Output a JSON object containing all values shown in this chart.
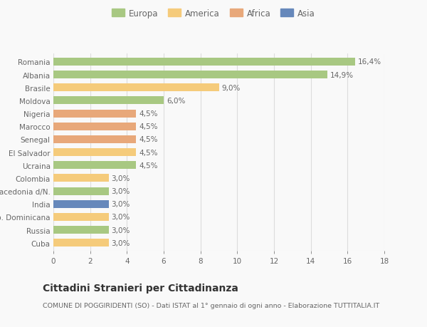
{
  "countries": [
    "Cuba",
    "Russia",
    "Rep. Dominicana",
    "India",
    "Macedonia d/N.",
    "Colombia",
    "Ucraina",
    "El Salvador",
    "Senegal",
    "Marocco",
    "Nigeria",
    "Moldova",
    "Brasile",
    "Albania",
    "Romania"
  ],
  "values": [
    3.0,
    3.0,
    3.0,
    3.0,
    3.0,
    3.0,
    4.5,
    4.5,
    4.5,
    4.5,
    4.5,
    6.0,
    9.0,
    14.9,
    16.4
  ],
  "labels": [
    "3,0%",
    "3,0%",
    "3,0%",
    "3,0%",
    "3,0%",
    "3,0%",
    "4,5%",
    "4,5%",
    "4,5%",
    "4,5%",
    "4,5%",
    "6,0%",
    "9,0%",
    "14,9%",
    "16,4%"
  ],
  "colors": [
    "#f5cb7b",
    "#a8c882",
    "#f5cb7b",
    "#6688bb",
    "#a8c882",
    "#f5cb7b",
    "#a8c882",
    "#f5cb7b",
    "#e8a87a",
    "#e8a87a",
    "#e8a87a",
    "#a8c882",
    "#f5cb7b",
    "#a8c882",
    "#a8c882"
  ],
  "legend": [
    {
      "label": "Europa",
      "color": "#a8c882"
    },
    {
      "label": "America",
      "color": "#f5cb7b"
    },
    {
      "label": "Africa",
      "color": "#e8a87a"
    },
    {
      "label": "Asia",
      "color": "#6688bb"
    }
  ],
  "xlim": [
    0,
    18
  ],
  "xticks": [
    0,
    2,
    4,
    6,
    8,
    10,
    12,
    14,
    16,
    18
  ],
  "title": "Cittadini Stranieri per Cittadinanza",
  "subtitle": "COMUNE DI POGGIRIDENTI (SO) - Dati ISTAT al 1° gennaio di ogni anno - Elaborazione TUTTITALIA.IT",
  "background_color": "#f9f9f9",
  "bar_height": 0.6,
  "grid_color": "#dddddd",
  "text_color": "#666666",
  "label_fontsize": 7.5,
  "tick_fontsize": 7.5,
  "legend_fontsize": 8.5,
  "title_fontsize": 10,
  "subtitle_fontsize": 6.8
}
